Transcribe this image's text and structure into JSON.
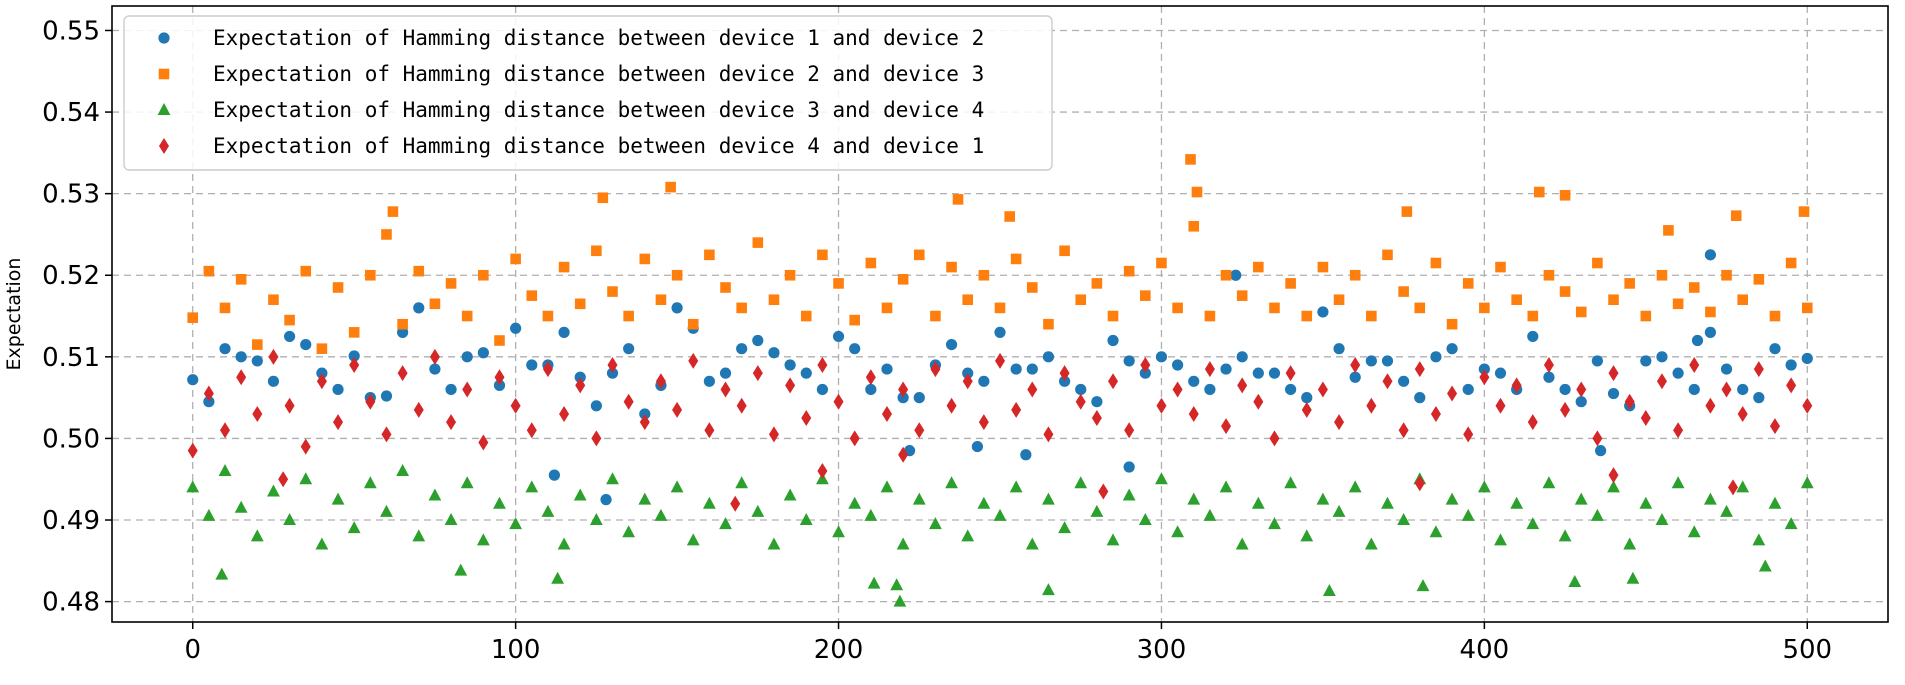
{
  "chart_data": {
    "type": "scatter",
    "title": "",
    "xlabel": "",
    "ylabel": "Expectation",
    "xlim": [
      -25,
      525
    ],
    "ylim": [
      0.4775,
      0.553
    ],
    "xticks": [
      0,
      100,
      200,
      300,
      400,
      500
    ],
    "yticks": [
      0.48,
      0.49,
      0.5,
      0.51,
      0.52,
      0.53,
      0.54,
      0.55
    ],
    "ytick_labels": [
      "0.48",
      "0.49",
      "0.50",
      "0.51",
      "0.52",
      "0.53",
      "0.54",
      "0.55"
    ],
    "grid": true,
    "legend_position": "top-left",
    "series": [
      {
        "name": "Expectation of Hamming distance between device 1 and device 2",
        "marker": "circle",
        "color": "#1f77b4",
        "x": [
          0,
          10,
          20,
          30,
          40,
          50,
          60,
          70,
          80,
          90,
          100,
          110,
          120,
          130,
          140,
          150,
          160,
          170,
          180,
          190,
          200,
          210,
          220,
          230,
          240,
          250,
          260,
          270,
          280,
          290,
          300,
          310,
          320,
          330,
          340,
          350,
          360,
          370,
          380,
          390,
          400,
          410,
          420,
          430,
          440,
          450,
          460,
          470,
          480,
          490,
          500,
          5,
          15,
          25,
          35,
          45,
          55,
          65,
          75,
          85,
          95,
          105,
          115,
          125,
          135,
          145,
          155,
          165,
          175,
          185,
          195,
          205,
          215,
          225,
          235,
          245,
          255,
          265,
          275,
          285,
          295,
          305,
          315,
          325,
          335,
          345,
          355,
          365,
          375,
          385,
          395,
          405,
          415,
          425,
          435,
          445,
          455,
          465,
          475,
          485,
          495,
          112,
          128,
          222,
          243,
          258,
          290,
          323,
          436,
          466,
          470
        ],
        "y": [
          0.5072,
          0.511,
          0.5095,
          0.5125,
          0.508,
          0.5101,
          0.5052,
          0.516,
          0.506,
          0.5105,
          0.5135,
          0.509,
          0.5075,
          0.508,
          0.503,
          0.516,
          0.507,
          0.511,
          0.5105,
          0.508,
          0.5125,
          0.506,
          0.505,
          0.509,
          0.508,
          0.513,
          0.5085,
          0.507,
          0.5045,
          0.5095,
          0.51,
          0.507,
          0.5085,
          0.508,
          0.506,
          0.5155,
          0.5075,
          0.5095,
          0.505,
          0.511,
          0.5085,
          0.506,
          0.5075,
          0.5045,
          0.5055,
          0.5095,
          0.508,
          0.513,
          0.506,
          0.511,
          0.5098,
          0.5045,
          0.51,
          0.507,
          0.5115,
          0.506,
          0.505,
          0.513,
          0.5085,
          0.51,
          0.5065,
          0.509,
          0.513,
          0.504,
          0.511,
          0.5065,
          0.5135,
          0.508,
          0.512,
          0.509,
          0.506,
          0.511,
          0.5085,
          0.505,
          0.5115,
          0.507,
          0.5085,
          0.51,
          0.506,
          0.512,
          0.508,
          0.509,
          0.506,
          0.51,
          0.508,
          0.505,
          0.511,
          0.5095,
          0.507,
          0.51,
          0.506,
          0.508,
          0.5125,
          0.506,
          0.5095,
          0.504,
          0.51,
          0.506,
          0.5085,
          0.505,
          0.509,
          0.4955,
          0.4925,
          0.4985,
          0.499,
          0.498,
          0.4965,
          0.52,
          0.4985,
          0.512,
          0.5225
        ]
      },
      {
        "name": "Expectation of Hamming distance between device 2 and device 3",
        "marker": "square",
        "color": "#ff7f0e",
        "x": [
          0,
          5,
          10,
          15,
          20,
          25,
          30,
          35,
          40,
          45,
          50,
          55,
          60,
          65,
          70,
          75,
          80,
          85,
          90,
          95,
          100,
          105,
          110,
          115,
          120,
          125,
          130,
          135,
          140,
          145,
          150,
          155,
          160,
          165,
          170,
          175,
          180,
          185,
          190,
          195,
          200,
          205,
          210,
          215,
          220,
          225,
          230,
          235,
          240,
          245,
          250,
          255,
          260,
          265,
          270,
          275,
          280,
          285,
          290,
          295,
          300,
          305,
          310,
          315,
          320,
          325,
          330,
          335,
          340,
          345,
          350,
          355,
          360,
          365,
          370,
          375,
          380,
          385,
          390,
          395,
          400,
          405,
          410,
          415,
          420,
          425,
          430,
          435,
          440,
          445,
          450,
          455,
          460,
          465,
          470,
          475,
          480,
          485,
          490,
          495,
          500,
          62,
          127,
          148,
          237,
          253,
          309,
          311,
          376,
          417,
          425,
          457,
          478,
          499
        ],
        "y": [
          0.5148,
          0.5205,
          0.516,
          0.5195,
          0.5115,
          0.517,
          0.5145,
          0.5205,
          0.511,
          0.5185,
          0.513,
          0.52,
          0.525,
          0.514,
          0.5205,
          0.5165,
          0.519,
          0.515,
          0.52,
          0.512,
          0.522,
          0.5175,
          0.515,
          0.521,
          0.5165,
          0.523,
          0.518,
          0.515,
          0.522,
          0.517,
          0.52,
          0.514,
          0.5225,
          0.5185,
          0.516,
          0.524,
          0.517,
          0.52,
          0.515,
          0.5225,
          0.519,
          0.5145,
          0.5215,
          0.516,
          0.5195,
          0.5225,
          0.515,
          0.521,
          0.517,
          0.52,
          0.516,
          0.522,
          0.5185,
          0.514,
          0.523,
          0.517,
          0.519,
          0.515,
          0.5205,
          0.5175,
          0.5215,
          0.516,
          0.526,
          0.515,
          0.52,
          0.5175,
          0.521,
          0.516,
          0.519,
          0.515,
          0.521,
          0.517,
          0.52,
          0.515,
          0.5225,
          0.518,
          0.516,
          0.5215,
          0.514,
          0.519,
          0.516,
          0.521,
          0.517,
          0.515,
          0.52,
          0.518,
          0.5155,
          0.5215,
          0.517,
          0.519,
          0.515,
          0.52,
          0.5165,
          0.5185,
          0.5155,
          0.52,
          0.517,
          0.5195,
          0.515,
          0.5215,
          0.516,
          0.5278,
          0.5295,
          0.5308,
          0.5293,
          0.5272,
          0.5342,
          0.5302,
          0.5278,
          0.5302,
          0.5298,
          0.5255,
          0.5273,
          0.5278
        ]
      },
      {
        "name": "Expectation of Hamming distance between device 3 and device 4",
        "marker": "triangle",
        "color": "#2ca02c",
        "x": [
          0,
          5,
          10,
          15,
          20,
          25,
          30,
          35,
          40,
          45,
          50,
          55,
          60,
          65,
          70,
          75,
          80,
          85,
          90,
          95,
          100,
          105,
          110,
          115,
          120,
          125,
          130,
          135,
          140,
          145,
          150,
          155,
          160,
          165,
          170,
          175,
          180,
          185,
          190,
          195,
          200,
          205,
          210,
          215,
          220,
          225,
          230,
          235,
          240,
          245,
          250,
          255,
          260,
          265,
          270,
          275,
          280,
          285,
          290,
          295,
          300,
          305,
          310,
          315,
          320,
          325,
          330,
          335,
          340,
          345,
          350,
          355,
          360,
          365,
          370,
          375,
          380,
          385,
          390,
          395,
          400,
          405,
          410,
          415,
          420,
          425,
          430,
          435,
          440,
          445,
          450,
          455,
          460,
          465,
          470,
          475,
          480,
          485,
          490,
          495,
          500,
          9,
          83,
          113,
          211,
          218,
          219,
          265,
          352,
          381,
          428,
          446,
          487
        ],
        "y": [
          0.494,
          0.4905,
          0.496,
          0.4915,
          0.488,
          0.4935,
          0.49,
          0.495,
          0.487,
          0.4925,
          0.489,
          0.4945,
          0.491,
          0.496,
          0.488,
          0.493,
          0.49,
          0.4945,
          0.4875,
          0.492,
          0.4895,
          0.494,
          0.491,
          0.487,
          0.493,
          0.49,
          0.495,
          0.4885,
          0.4925,
          0.4905,
          0.494,
          0.4875,
          0.492,
          0.4895,
          0.4945,
          0.491,
          0.487,
          0.493,
          0.49,
          0.495,
          0.4885,
          0.492,
          0.4905,
          0.494,
          0.487,
          0.4925,
          0.4895,
          0.4945,
          0.488,
          0.492,
          0.4905,
          0.494,
          0.487,
          0.4925,
          0.489,
          0.4945,
          0.491,
          0.4875,
          0.493,
          0.49,
          0.495,
          0.4885,
          0.4925,
          0.4905,
          0.494,
          0.487,
          0.492,
          0.4895,
          0.4945,
          0.488,
          0.4925,
          0.491,
          0.494,
          0.487,
          0.492,
          0.49,
          0.495,
          0.4885,
          0.4925,
          0.4905,
          0.494,
          0.4875,
          0.492,
          0.4895,
          0.4945,
          0.488,
          0.4925,
          0.4905,
          0.494,
          0.487,
          0.492,
          0.49,
          0.4945,
          0.4885,
          0.4925,
          0.491,
          0.494,
          0.4875,
          0.492,
          0.4895,
          0.4945,
          0.4833,
          0.4838,
          0.4828,
          0.4822,
          0.482,
          0.48,
          0.4814,
          0.4813,
          0.4819,
          0.4824,
          0.4828,
          0.4843
        ]
      },
      {
        "name": "Expectation of Hamming distance between device 4 and device 1",
        "marker": "diamond",
        "color": "#d62728",
        "x": [
          0,
          5,
          10,
          15,
          20,
          25,
          30,
          35,
          40,
          45,
          50,
          55,
          60,
          65,
          70,
          75,
          80,
          85,
          90,
          95,
          100,
          105,
          110,
          115,
          120,
          125,
          130,
          135,
          140,
          145,
          150,
          155,
          160,
          165,
          170,
          175,
          180,
          185,
          190,
          195,
          200,
          205,
          210,
          215,
          220,
          225,
          230,
          235,
          240,
          245,
          250,
          255,
          260,
          265,
          270,
          275,
          280,
          285,
          290,
          295,
          300,
          305,
          310,
          315,
          320,
          325,
          330,
          335,
          340,
          345,
          350,
          355,
          360,
          365,
          370,
          375,
          380,
          385,
          390,
          395,
          400,
          405,
          410,
          415,
          420,
          425,
          430,
          435,
          440,
          445,
          450,
          455,
          460,
          465,
          470,
          475,
          480,
          485,
          490,
          495,
          500,
          28,
          168,
          195,
          220,
          282,
          380,
          440,
          477
        ],
        "y": [
          0.4985,
          0.5055,
          0.501,
          0.5075,
          0.503,
          0.51,
          0.504,
          0.499,
          0.507,
          0.502,
          0.509,
          0.5045,
          0.5005,
          0.508,
          0.5035,
          0.51,
          0.502,
          0.506,
          0.4995,
          0.5075,
          0.504,
          0.501,
          0.5085,
          0.503,
          0.5065,
          0.5,
          0.509,
          0.5045,
          0.502,
          0.507,
          0.5035,
          0.5095,
          0.501,
          0.506,
          0.504,
          0.508,
          0.5005,
          0.5065,
          0.5025,
          0.509,
          0.5045,
          0.5,
          0.5075,
          0.503,
          0.506,
          0.501,
          0.5085,
          0.504,
          0.507,
          0.502,
          0.5095,
          0.5035,
          0.506,
          0.5005,
          0.508,
          0.5045,
          0.5025,
          0.507,
          0.501,
          0.509,
          0.504,
          0.506,
          0.503,
          0.5085,
          0.5015,
          0.5065,
          0.5045,
          0.5,
          0.508,
          0.5035,
          0.506,
          0.502,
          0.509,
          0.504,
          0.507,
          0.501,
          0.5085,
          0.503,
          0.5055,
          0.5005,
          0.5075,
          0.504,
          0.5065,
          0.502,
          0.509,
          0.5035,
          0.506,
          0.5,
          0.508,
          0.5045,
          0.5025,
          0.507,
          0.501,
          0.509,
          0.504,
          0.506,
          0.503,
          0.5085,
          0.5015,
          0.5065,
          0.504,
          0.495,
          0.492,
          0.496,
          0.498,
          0.4935,
          0.4945,
          0.4955,
          0.494
        ]
      }
    ]
  }
}
